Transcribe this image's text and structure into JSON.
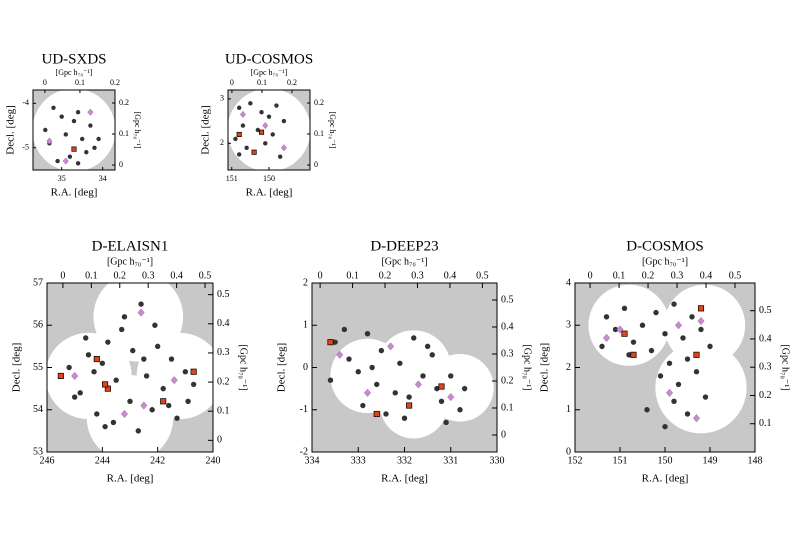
{
  "chart_data": [
    {
      "type": "scatter",
      "title": "UD-SXDS",
      "xlabel": "R.A. [deg]",
      "ylabel": "Decl. [deg]",
      "x2label": "[Gpc h₇₀⁻¹]",
      "y2label": "[Gpc h₇₀⁻¹]",
      "xlim": [
        35.7,
        33.7
      ],
      "ylim": [
        -5.5,
        -3.7
      ],
      "xticks": [
        35,
        34
      ],
      "yticks": [
        -4,
        -5
      ],
      "x2lim": [
        -0.034,
        0.2
      ],
      "x2ticks": [
        0,
        0.1,
        0.2
      ],
      "y2lim": [
        -0.016,
        0.242
      ],
      "y2ticks": [
        0,
        0.1,
        0.2
      ],
      "series": [
        {
          "color": "#333333",
          "marker": "circle",
          "x": [
            35.2,
            35.0,
            34.6,
            34.3,
            34.9,
            35.3,
            34.5,
            34.2,
            34.8,
            35.1,
            34.4,
            34.7,
            35.4,
            34.1,
            34.6
          ],
          "values": [
            -4.1,
            -4.3,
            -4.2,
            -4.5,
            -4.7,
            -4.9,
            -4.8,
            -5.0,
            -5.2,
            -5.3,
            -5.1,
            -4.4,
            -4.6,
            -4.8,
            -5.35
          ]
        },
        {
          "color": "#c98bd0",
          "marker": "diamond",
          "x": [
            34.3,
            35.3,
            34.9
          ],
          "values": [
            -4.2,
            -4.85,
            -5.3
          ]
        },
        {
          "color": "#e0451a",
          "marker": "square",
          "x": [
            34.7
          ],
          "values": [
            -5.03
          ]
        }
      ]
    },
    {
      "type": "scatter",
      "title": "UD-COSMOS",
      "xlabel": "R.A. [deg]",
      "ylabel": "Decl. [deg]",
      "x2label": "[Gpc h₇₀⁻¹]",
      "y2label": "[Gpc h₇₀⁻¹]",
      "xlim": [
        151.1,
        148.9
      ],
      "ylim": [
        1.4,
        3.2
      ],
      "xticks": [
        151,
        150
      ],
      "yticks": [
        3,
        2
      ],
      "x2lim": [
        -0.013,
        0.26
      ],
      "x2ticks": [
        0,
        0.1,
        0.2
      ],
      "y2lim": [
        -0.016,
        0.242
      ],
      "y2ticks": [
        0,
        0.1,
        0.2
      ],
      "series": [
        {
          "color": "#333333",
          "marker": "circle",
          "x": [
            150.8,
            150.5,
            150.2,
            149.8,
            150.7,
            150.3,
            149.6,
            150.9,
            150.1,
            149.9,
            150.4,
            150.6,
            149.7,
            150.0,
            150.8
          ],
          "values": [
            2.8,
            2.9,
            2.7,
            2.85,
            2.4,
            2.3,
            2.5,
            2.1,
            2.0,
            2.2,
            1.8,
            1.9,
            1.7,
            2.6,
            1.75
          ]
        },
        {
          "color": "#c98bd0",
          "marker": "diamond",
          "x": [
            150.7,
            150.1,
            149.6
          ],
          "values": [
            2.65,
            2.4,
            1.9
          ]
        },
        {
          "color": "#e0451a",
          "marker": "square",
          "x": [
            150.8,
            150.2,
            150.4
          ],
          "values": [
            2.2,
            2.25,
            1.8
          ]
        }
      ]
    },
    {
      "type": "scatter",
      "title": "D-ELAISN1",
      "xlabel": "R.A. [deg]",
      "ylabel": "Decl. [deg]",
      "x2label": "[Gpc h₇₀⁻¹]",
      "y2label": "[Gpc h₇₀⁻¹]",
      "xlim": [
        246,
        240
      ],
      "ylim": [
        53,
        57
      ],
      "xticks": [
        246,
        244,
        242,
        240
      ],
      "yticks": [
        53,
        54,
        55,
        56,
        57
      ],
      "x2lim": [
        -0.056,
        0.528
      ],
      "x2ticks": [
        0,
        0.1,
        0.2,
        0.3,
        0.4,
        0.5
      ],
      "y2lim": [
        -0.04,
        0.54
      ],
      "y2ticks": [
        0,
        0.1,
        0.2,
        0.3,
        0.4,
        0.5
      ],
      "series": [
        {
          "color": "#333333",
          "marker": "circle",
          "x": [
            242.6,
            243.2,
            242.1,
            243.8,
            242.9,
            244.5,
            245.2,
            244.0,
            241.5,
            241.0,
            240.7,
            242.4,
            243.5,
            244.8,
            241.8,
            243.0,
            242.2,
            244.2,
            245.0,
            240.9,
            243.6,
            242.7,
            241.3,
            244.6,
            243.3,
            242.0,
            241.6,
            243.9,
            242.5,
            244.3
          ],
          "values": [
            56.5,
            56.2,
            56.0,
            55.6,
            55.4,
            55.3,
            55.0,
            55.1,
            55.2,
            54.9,
            54.6,
            54.8,
            54.7,
            54.4,
            54.5,
            54.2,
            54.0,
            53.9,
            54.3,
            54.2,
            53.7,
            53.5,
            53.8,
            55.7,
            55.9,
            55.5,
            54.1,
            53.6,
            55.2,
            54.9
          ]
        },
        {
          "color": "#c98bd0",
          "marker": "diamond",
          "x": [
            242.6,
            245.0,
            243.2,
            241.4,
            242.5
          ],
          "values": [
            56.3,
            54.8,
            53.9,
            54.7,
            54.1
          ]
        },
        {
          "color": "#e0451a",
          "marker": "square",
          "x": [
            245.5,
            244.2,
            243.8,
            240.7,
            241.8,
            243.9
          ],
          "values": [
            54.8,
            55.2,
            54.5,
            54.9,
            54.2,
            54.6
          ]
        }
      ]
    },
    {
      "type": "scatter",
      "title": "D-DEEP23",
      "xlabel": "R.A. [deg]",
      "ylabel": "Decl. [deg]",
      "x2label": "[Gpc h₇₀⁻¹]",
      "y2label": "[Gpc h₇₀⁻¹]",
      "xlim": [
        334,
        330
      ],
      "ylim": [
        -2,
        2
      ],
      "xticks": [
        334,
        333,
        332,
        331,
        330
      ],
      "yticks": [
        -2,
        -1,
        0,
        1,
        2
      ],
      "x2lim": [
        -0.025,
        0.545
      ],
      "x2ticks": [
        0,
        0.1,
        0.2,
        0.3,
        0.4,
        0.5
      ],
      "y2lim": [
        -0.063,
        0.563
      ],
      "y2ticks": [
        0,
        0.1,
        0.2,
        0.3,
        0.4,
        0.5
      ],
      "series": [
        {
          "color": "#333333",
          "marker": "circle",
          "x": [
            333.5,
            333.2,
            332.8,
            332.5,
            332.1,
            331.8,
            331.4,
            331.0,
            330.7,
            333.6,
            333.0,
            332.6,
            332.2,
            331.6,
            331.2,
            330.8,
            333.3,
            332.9,
            332.4,
            331.9,
            331.5,
            331.1,
            332.7,
            332.0,
            331.3
          ],
          "values": [
            0.6,
            0.2,
            0.8,
            0.4,
            0.1,
            0.7,
            0.3,
            -0.2,
            -0.5,
            -0.3,
            -0.1,
            -0.4,
            -0.6,
            -0.2,
            -0.8,
            -1.0,
            0.9,
            -0.9,
            -1.1,
            -0.7,
            0.5,
            -1.3,
            0.0,
            -1.2,
            -0.5
          ]
        },
        {
          "color": "#c98bd0",
          "marker": "diamond",
          "x": [
            333.4,
            332.3,
            331.7,
            331.0,
            332.8
          ],
          "values": [
            0.3,
            0.5,
            -0.4,
            -0.7,
            -0.6
          ]
        },
        {
          "color": "#e0451a",
          "marker": "square",
          "x": [
            333.6,
            332.6,
            331.9,
            331.2
          ],
          "values": [
            0.6,
            -1.1,
            -0.9,
            -0.45
          ]
        }
      ]
    },
    {
      "type": "scatter",
      "title": "D-COSMOS",
      "xlabel": "R.A. [deg]",
      "ylabel": "Decl. [deg]",
      "x2label": "[Gpc h₇₀⁻¹]",
      "y2label": "[Gpc h₇₀⁻¹]",
      "xlim": [
        152,
        148
      ],
      "ylim": [
        0,
        4
      ],
      "xticks": [
        152,
        151,
        150,
        149,
        148
      ],
      "yticks": [
        0,
        1,
        2,
        3,
        4
      ],
      "x2lim": [
        -0.052,
        0.569
      ],
      "x2ticks": [
        0,
        0.1,
        0.2,
        0.3,
        0.4,
        0.5
      ],
      "y2lim": [
        0,
        0.598
      ],
      "y2ticks": [
        0.1,
        0.2,
        0.3,
        0.4,
        0.5
      ],
      "series": [
        {
          "color": "#333333",
          "marker": "circle",
          "x": [
            151.3,
            150.9,
            150.5,
            150.2,
            149.8,
            149.4,
            151.1,
            150.7,
            150.0,
            149.6,
            149.2,
            151.4,
            150.8,
            150.3,
            149.9,
            149.5,
            149.0,
            150.1,
            149.7,
            149.3,
            149.8,
            150.4,
            149.5,
            149.1,
            150.0
          ],
          "values": [
            3.2,
            3.4,
            3.0,
            3.3,
            3.5,
            3.2,
            2.9,
            2.6,
            2.8,
            2.7,
            2.9,
            2.5,
            2.3,
            2.4,
            2.1,
            2.2,
            2.5,
            1.8,
            1.6,
            1.9,
            1.2,
            1.0,
            0.9,
            1.3,
            0.6
          ]
        },
        {
          "color": "#c98bd0",
          "marker": "diamond",
          "x": [
            151.3,
            151.0,
            149.7,
            149.2,
            149.9,
            149.3
          ],
          "values": [
            2.7,
            2.9,
            3.0,
            3.1,
            1.4,
            0.8
          ]
        },
        {
          "color": "#e0451a",
          "marker": "square",
          "x": [
            150.9,
            150.7,
            149.2,
            149.3
          ],
          "values": [
            2.8,
            2.3,
            3.4,
            2.3
          ]
        }
      ]
    }
  ]
}
